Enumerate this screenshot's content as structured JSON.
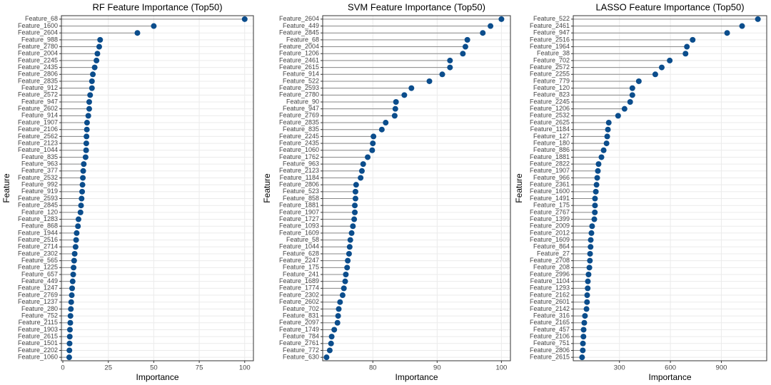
{
  "chart_data": [
    {
      "type": "lollipop",
      "title": "RF Feature Importance (Top50)",
      "xlabel": "Importance",
      "ylabel": "Feature",
      "categories": [
        "Feature_68",
        "Feature_1600",
        "Feature_2604",
        "Feature_988",
        "Feature_2780",
        "Feature_2004",
        "Feature_2245",
        "Feature_2435",
        "Feature_2806",
        "Feature_2835",
        "Feature_912",
        "Feature_2572",
        "Feature_947",
        "Feature_2602",
        "Feature_914",
        "Feature_1907",
        "Feature_2106",
        "Feature_2562",
        "Feature_2123",
        "Feature_1044",
        "Feature_835",
        "Feature_963",
        "Feature_377",
        "Feature_2532",
        "Feature_992",
        "Feature_919",
        "Feature_2593",
        "Feature_2845",
        "Feature_120",
        "Feature_1283",
        "Feature_868",
        "Feature_1944",
        "Feature_2516",
        "Feature_2714",
        "Feature_2302",
        "Feature_565",
        "Feature_1225",
        "Feature_657",
        "Feature_449",
        "Feature_1247",
        "Feature_2769",
        "Feature_1237",
        "Feature_280",
        "Feature_752",
        "Feature_2115",
        "Feature_1903",
        "Feature_2615",
        "Feature_1501",
        "Feature_2202",
        "Feature_1060"
      ],
      "values": [
        100,
        50,
        41,
        20.5,
        20,
        19,
        18.5,
        17.5,
        16.5,
        16,
        16,
        15,
        14.5,
        14.5,
        14,
        13.3,
        13.2,
        13,
        12.9,
        12.8,
        12.5,
        11.5,
        11.2,
        11,
        10.8,
        10.6,
        10.3,
        10,
        9.7,
        8.6,
        8.3,
        7.6,
        7.3,
        7,
        6.5,
        6.2,
        5.9,
        5.7,
        5.4,
        5.1,
        4.9,
        4.6,
        4.4,
        4.2,
        4.1,
        3.9,
        3.8,
        3.7,
        3.6,
        3.5
      ],
      "color": "#0b4d8c",
      "xlim": [
        -0.8,
        104.8
      ],
      "xticks": [
        0,
        25,
        50,
        75,
        100
      ],
      "grid": true
    },
    {
      "type": "lollipop",
      "title": "SVM Feature Importance (Top50)",
      "xlabel": "Importance",
      "ylabel": "Feature",
      "categories": [
        "Feature_2604",
        "Feature_449",
        "Feature_2845",
        "Feature_68",
        "Feature_2004",
        "Feature_1206",
        "Feature_2461",
        "Feature_2615",
        "Feature_914",
        "Feature_522",
        "Feature_2593",
        "Feature_2780",
        "Feature_90",
        "Feature_947",
        "Feature_2769",
        "Feature_2835",
        "Feature_835",
        "Feature_2245",
        "Feature_2435",
        "Feature_1060",
        "Feature_1762",
        "Feature_963",
        "Feature_2123",
        "Feature_1184",
        "Feature_2806",
        "Feature_523",
        "Feature_858",
        "Feature_1881",
        "Feature_1907",
        "Feature_1727",
        "Feature_1093",
        "Feature_1609",
        "Feature_58",
        "Feature_1044",
        "Feature_628",
        "Feature_2247",
        "Feature_175",
        "Feature_241",
        "Feature_1689",
        "Feature_1774",
        "Feature_2302",
        "Feature_2602",
        "Feature_702",
        "Feature_831",
        "Feature_2097",
        "Feature_1749",
        "Feature_784",
        "Feature_2761",
        "Feature_772",
        "Feature_630"
      ],
      "values": [
        100,
        98.3,
        97.1,
        94.7,
        94.4,
        94,
        92,
        92,
        90.8,
        88.8,
        86,
        84.9,
        83.6,
        83.5,
        83.4,
        82,
        81.4,
        80.1,
        80,
        79.9,
        79.2,
        78.5,
        78.3,
        78.1,
        77.4,
        77.3,
        77.3,
        77.2,
        77.2,
        77.1,
        76.9,
        76.7,
        76.5,
        76.4,
        76.3,
        76.1,
        76,
        75.8,
        75.7,
        75.5,
        75.3,
        74.9,
        74.7,
        74.6,
        74.5,
        74,
        73.6,
        73.5,
        73.3,
        72.8
      ],
      "color": "#0b4d8c",
      "xlim": [
        72.2,
        101.4
      ],
      "xticks": [
        80,
        90,
        100
      ],
      "grid": true
    },
    {
      "type": "lollipop",
      "title": "LASSO Feature Importance (Top50)",
      "xlabel": "Importance",
      "ylabel": "Feature",
      "categories": [
        "Feature_522",
        "Feature_2461",
        "Feature_947",
        "Feature_2516",
        "Feature_1964",
        "Feature_38",
        "Feature_702",
        "Feature_2572",
        "Feature_2255",
        "Feature_779",
        "Feature_120",
        "Feature_823",
        "Feature_2245",
        "Feature_1206",
        "Feature_2532",
        "Feature_2625",
        "Feature_1184",
        "Feature_127",
        "Feature_180",
        "Feature_886",
        "Feature_1881",
        "Feature_2822",
        "Feature_1907",
        "Feature_966",
        "Feature_2361",
        "Feature_1600",
        "Feature_1491",
        "Feature_175",
        "Feature_2767",
        "Feature_1399",
        "Feature_2009",
        "Feature_2012",
        "Feature_1609",
        "Feature_864",
        "Feature_27",
        "Feature_2708",
        "Feature_208",
        "Feature_2996",
        "Feature_1104",
        "Feature_1293",
        "Feature_2162",
        "Feature_2601",
        "Feature_2142",
        "Feature_316",
        "Feature_2165",
        "Feature_457",
        "Feature_2106",
        "Feature_751",
        "Feature_2806",
        "Feature_2615"
      ],
      "values": [
        1115,
        1022,
        934,
        731,
        697,
        689,
        596,
        549,
        511,
        414,
        376,
        376,
        363,
        330,
        292,
        237,
        232,
        228,
        224,
        207,
        194,
        177,
        173,
        169,
        165,
        161,
        156,
        156,
        155,
        152,
        139,
        135,
        131,
        130,
        127,
        126,
        123,
        118,
        114,
        113,
        110,
        109,
        106,
        97,
        93,
        89,
        88,
        85,
        84,
        80
      ],
      "color": "#0b4d8c",
      "xlim": [
        28,
        1167
      ],
      "xticks": [
        300,
        600,
        900
      ],
      "grid": true
    }
  ]
}
